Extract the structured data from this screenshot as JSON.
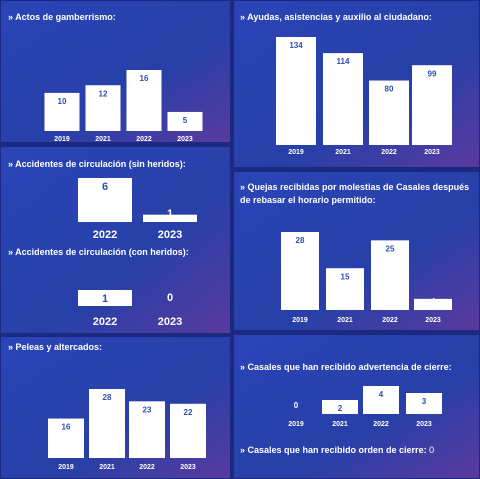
{
  "chart_data": [
    {
      "type": "bar",
      "title": "» Actos de gamberrismo:",
      "categories": [
        "2019",
        "2021",
        "2022",
        "2023"
      ],
      "values": [
        10,
        12,
        16,
        5
      ],
      "color": "#ffffff",
      "label_color": "#2f4fae"
    },
    {
      "type": "bar",
      "title": "» Ayudas, asistencias y auxilio al ciudadano:",
      "categories": [
        "2019",
        "2021",
        "2022",
        "2023"
      ],
      "values": [
        134,
        114,
        80,
        99
      ],
      "color": "#ffffff",
      "label_color": "#2f4fae"
    },
    {
      "type": "bar",
      "title": "» Accidentes de circulación (sin heridos):",
      "categories": [
        "2022",
        "2023"
      ],
      "values": [
        6,
        1
      ],
      "color": "#ffffff",
      "label_color": "#2f4fae"
    },
    {
      "type": "bar",
      "title": "» Accidentes de circulación (con heridos):",
      "categories": [
        "2022",
        "2023"
      ],
      "values": [
        1,
        0
      ],
      "color": "#ffffff",
      "label_color": "#2f4fae"
    },
    {
      "type": "bar",
      "title": "» Quejas recibidas por molestias de Casales después de rebasar el horario permitido:",
      "categories": [
        "2019",
        "2021",
        "2022",
        "2023"
      ],
      "values": [
        28,
        15,
        25,
        4
      ],
      "color": "#ffffff",
      "label_color": "#2f4fae"
    },
    {
      "type": "bar",
      "title": "» Peleas y altercados:",
      "categories": [
        "2019",
        "2021",
        "2022",
        "2023"
      ],
      "values": [
        16,
        28,
        23,
        22
      ],
      "color": "#ffffff",
      "label_color": "#2f4fae"
    },
    {
      "type": "bar",
      "title": "» Casales que han recibido advertencia de cierre:",
      "categories": [
        "2019",
        "2021",
        "2022",
        "2023"
      ],
      "values": [
        0,
        2,
        4,
        3
      ],
      "color": "#ffffff",
      "label_color": "#2f4fae"
    },
    {
      "type": "stat",
      "title": "» Casales que han recibido orden de cierre:",
      "value": 0
    }
  ]
}
